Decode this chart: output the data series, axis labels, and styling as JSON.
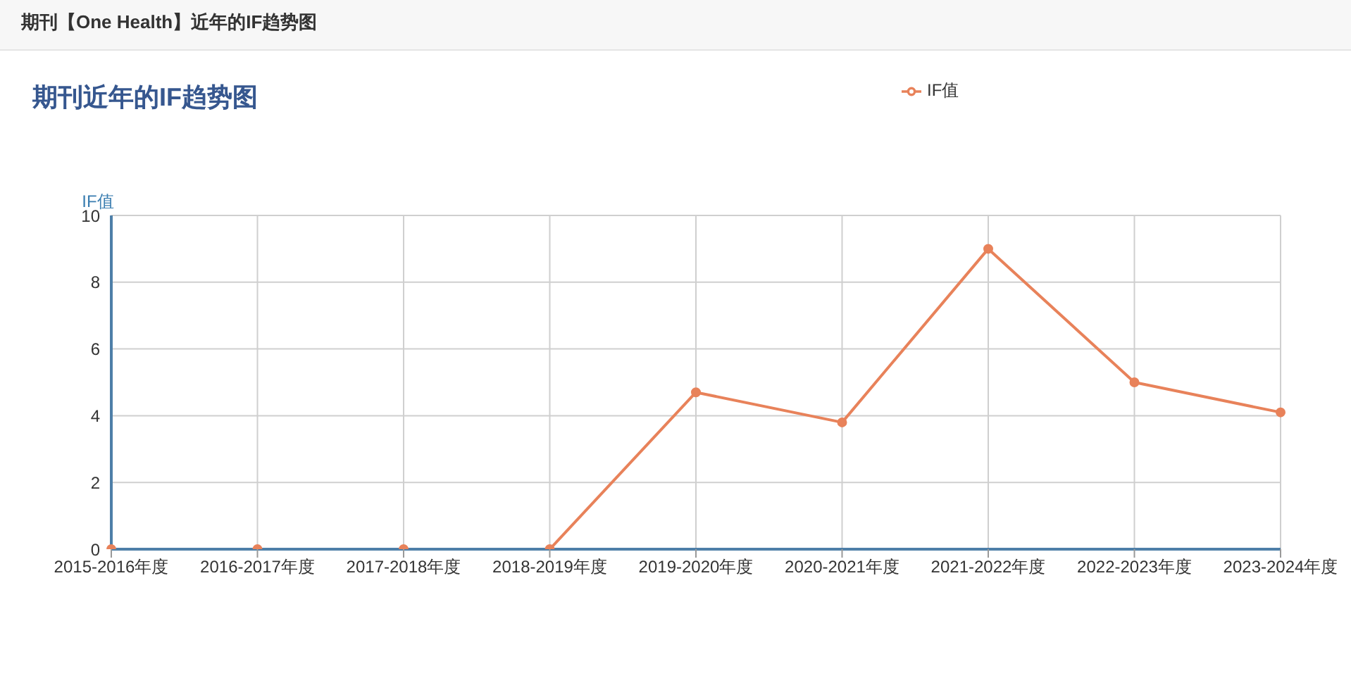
{
  "chart_data": {
    "type": "line",
    "title": "期刊【One Health】近年的IF趋势图",
    "subtitle": "期刊近年的IF趋势图",
    "ylabel": "IF值",
    "categories": [
      "2015-2016年度",
      "2016-2017年度",
      "2017-2018年度",
      "2018-2019年度",
      "2019-2020年度",
      "2020-2021年度",
      "2021-2022年度",
      "2022-2023年度",
      "2023-2024年度"
    ],
    "series": [
      {
        "name": "IF值",
        "color": "#e8825a",
        "values": [
          0,
          0,
          0,
          0,
          4.7,
          3.8,
          9.0,
          5.0,
          4.1
        ]
      }
    ],
    "ylim": [
      0,
      10
    ],
    "yticks": [
      0,
      2,
      4,
      6,
      8,
      10
    ],
    "grid": true,
    "legend": "top right",
    "marker": "circle",
    "line_style": "solid"
  }
}
